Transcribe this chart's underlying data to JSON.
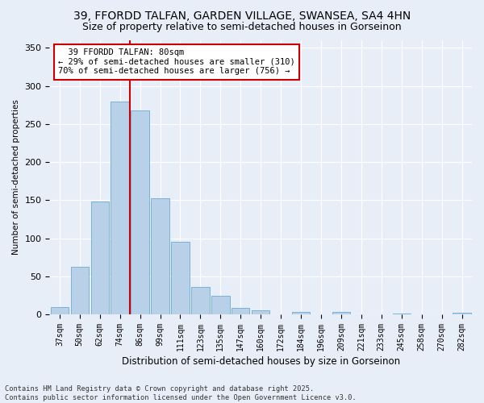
{
  "title1": "39, FFORDD TALFAN, GARDEN VILLAGE, SWANSEA, SA4 4HN",
  "title2": "Size of property relative to semi-detached houses in Gorseinon",
  "xlabel": "Distribution of semi-detached houses by size in Gorseinon",
  "ylabel": "Number of semi-detached properties",
  "annotation_line1": "  39 FFORDD TALFAN: 80sqm",
  "annotation_line2": "← 29% of semi-detached houses are smaller (310)",
  "annotation_line3": "70% of semi-detached houses are larger (756) →",
  "footer1": "Contains HM Land Registry data © Crown copyright and database right 2025.",
  "footer2": "Contains public sector information licensed under the Open Government Licence v3.0.",
  "categories": [
    "37sqm",
    "50sqm",
    "62sqm",
    "74sqm",
    "86sqm",
    "99sqm",
    "111sqm",
    "123sqm",
    "135sqm",
    "147sqm",
    "160sqm",
    "172sqm",
    "184sqm",
    "196sqm",
    "209sqm",
    "221sqm",
    "233sqm",
    "245sqm",
    "258sqm",
    "270sqm",
    "282sqm"
  ],
  "values": [
    10,
    63,
    148,
    280,
    268,
    153,
    95,
    36,
    24,
    9,
    5,
    0,
    3,
    0,
    3,
    0,
    0,
    1,
    0,
    0,
    2
  ],
  "bar_color": "#b8d0e8",
  "bar_edge_color": "#6aaad4",
  "vline_x": 3.5,
  "vline_color": "#cc0000",
  "ylim": [
    0,
    360
  ],
  "yticks": [
    0,
    50,
    100,
    150,
    200,
    250,
    300,
    350
  ],
  "bg_color": "#e8eef8",
  "plot_bg_color": "#e8eef8",
  "title1_fontsize": 10,
  "title2_fontsize": 9
}
